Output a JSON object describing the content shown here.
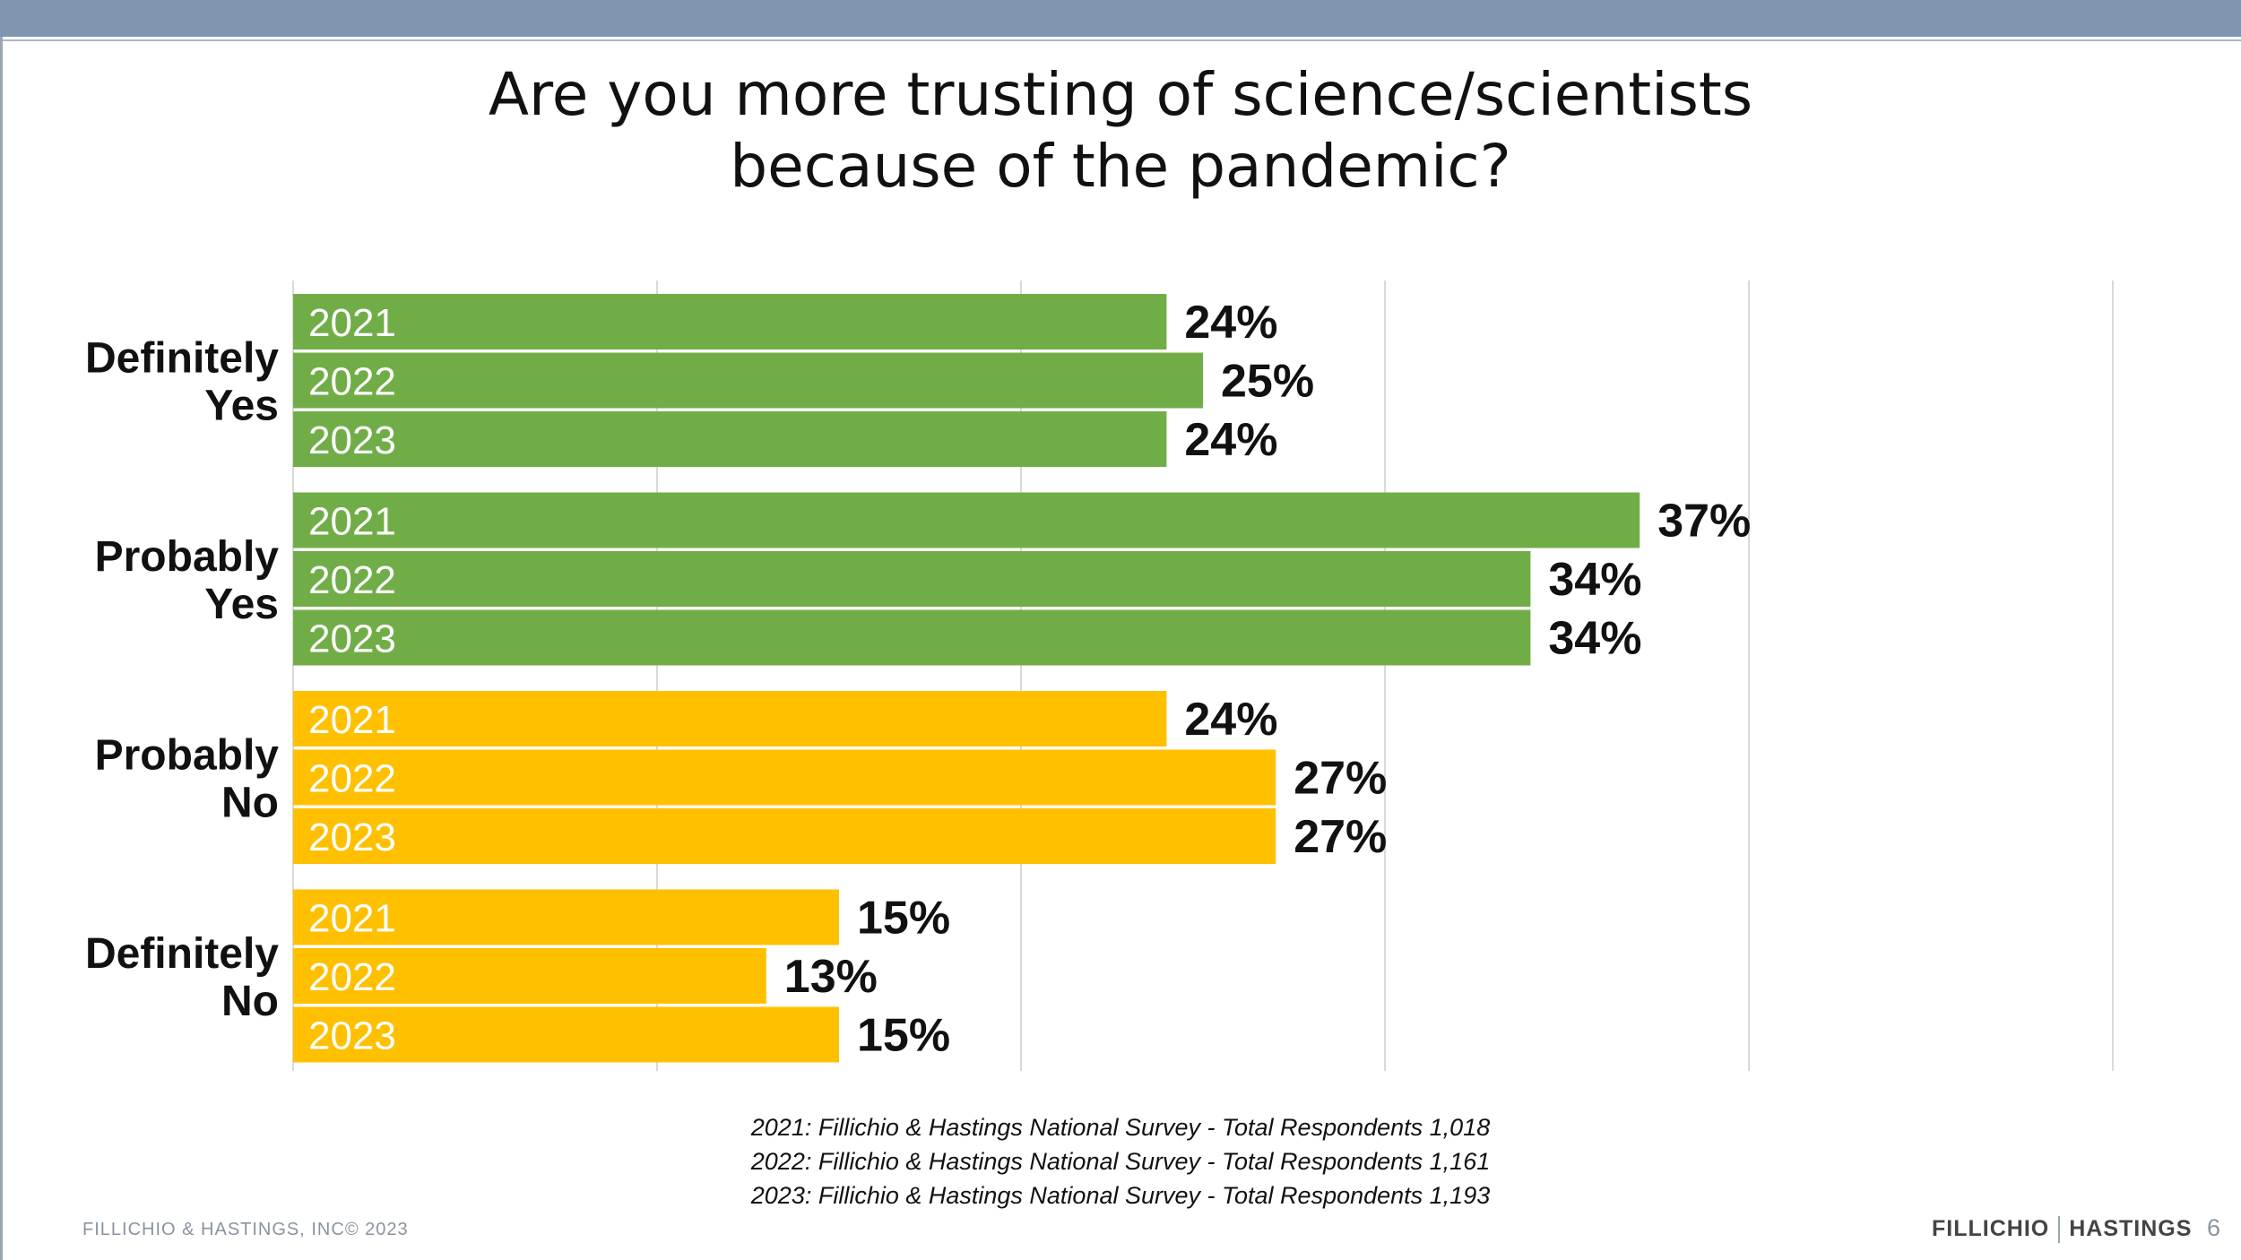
{
  "title_line1": "Are you more trusting of science/scientists",
  "title_line2": "because of the pandemic?",
  "colors": {
    "yes": "#70ad47",
    "no": "#ffc000",
    "grid": "#d9d9d9",
    "header": "#8096b0"
  },
  "chart_data": {
    "type": "bar",
    "orientation": "horizontal",
    "xlim": [
      0,
      50
    ],
    "grid": true,
    "categories": [
      {
        "label_lines": [
          "Definitely",
          "Yes"
        ],
        "color_key": "yes",
        "bars": [
          {
            "year": "2021",
            "value": 24,
            "label": "24%"
          },
          {
            "year": "2022",
            "value": 25,
            "label": "25%"
          },
          {
            "year": "2023",
            "value": 24,
            "label": "24%"
          }
        ]
      },
      {
        "label_lines": [
          "Probably",
          "Yes"
        ],
        "color_key": "yes",
        "bars": [
          {
            "year": "2021",
            "value": 37,
            "label": "37%"
          },
          {
            "year": "2022",
            "value": 34,
            "label": "34%"
          },
          {
            "year": "2023",
            "value": 34,
            "label": "34%"
          }
        ]
      },
      {
        "label_lines": [
          "Probably",
          "No"
        ],
        "color_key": "no",
        "bars": [
          {
            "year": "2021",
            "value": 24,
            "label": "24%"
          },
          {
            "year": "2022",
            "value": 27,
            "label": "27%"
          },
          {
            "year": "2023",
            "value": 27,
            "label": "27%"
          }
        ]
      },
      {
        "label_lines": [
          "Definitely",
          "No"
        ],
        "color_key": "no",
        "bars": [
          {
            "year": "2021",
            "value": 15,
            "label": "15%"
          },
          {
            "year": "2022",
            "value": 13,
            "label": "13%"
          },
          {
            "year": "2023",
            "value": 15,
            "label": "15%"
          }
        ]
      }
    ]
  },
  "footnotes": [
    "2021: Fillichio & Hastings National Survey   - Total Respondents 1,018",
    "2022: Fillichio & Hastings National Survey   - Total Respondents 1,161",
    "2023: Fillichio & Hastings National Survey   - Total Respondents 1,193"
  ],
  "footer": {
    "copyright": "FILLICHIO & HASTINGS, INC© 2023",
    "brand_left": "FILLICHIO",
    "brand_right": "HASTINGS",
    "page_number": "6"
  }
}
